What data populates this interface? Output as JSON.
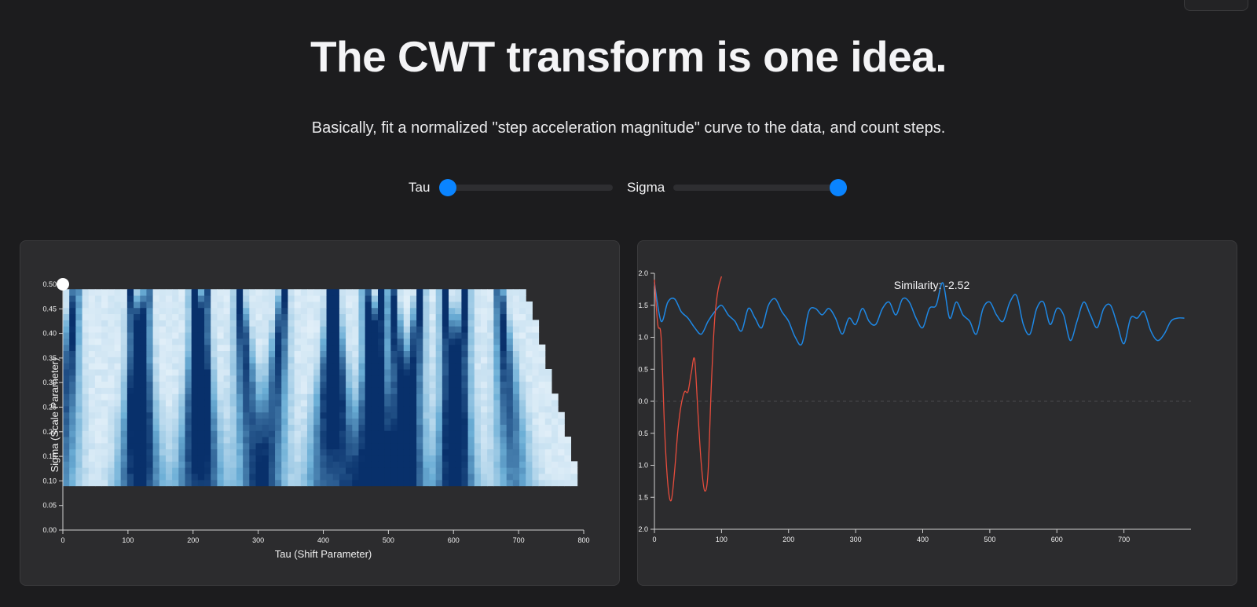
{
  "page": {
    "title": "The CWT transform is one idea.",
    "subtitle": "Basically, fit a normalized \"step acceleration magnitude\" curve to the data, and count steps."
  },
  "controls": {
    "tau": {
      "label": "Tau",
      "value_fraction": 0.0
    },
    "sigma": {
      "label": "Sigma",
      "value_fraction": 1.0
    }
  },
  "colors": {
    "background": "#1c1c1e",
    "panel": "#2c2c2e",
    "accent": "#0a84ff",
    "signal": "#1e88e5",
    "wavelet": "#e74c3c",
    "heat_low": "#f7fbff",
    "heat_high": "#08306b"
  },
  "chart_data": [
    {
      "type": "heatmap",
      "title": "",
      "xlabel": "Tau (Shift Parameter)",
      "ylabel": "Sigma (Scale Parameter)",
      "xlim": [
        0,
        800
      ],
      "ylim": [
        0,
        0.5
      ],
      "x_ticks": [
        "0",
        "100",
        "200",
        "300",
        "400",
        "500",
        "600",
        "700",
        "800"
      ],
      "y_ticks": [
        "0.00",
        "0.05",
        "0.10",
        "0.15",
        "0.20",
        "0.25",
        "0.30",
        "0.35",
        "0.40",
        "0.45",
        "0.50"
      ],
      "sigma_range": [
        0.09,
        0.49
      ],
      "tau_max": 790,
      "colormap": "Blues",
      "selected_point": {
        "tau": 0,
        "sigma": 0.5
      },
      "dark_tau_positions": [
        15,
        100,
        125,
        195,
        215,
        265,
        335,
        405,
        415,
        460,
        485,
        500,
        545,
        580,
        615,
        665
      ]
    },
    {
      "type": "line",
      "title": "",
      "annotation": "Similarity: -2.52",
      "xlim": [
        0,
        800
      ],
      "ylim": [
        -2.0,
        2.0
      ],
      "x_ticks": [
        "0",
        "100",
        "200",
        "300",
        "400",
        "500",
        "600",
        "700"
      ],
      "y_ticks": [
        "2.0",
        "1.5",
        "1.0",
        "0.5",
        "0.0",
        "−0.5",
        "−1.0",
        "−1.5",
        "−2.0"
      ],
      "series": [
        {
          "id": "signal",
          "x": [
            0,
            10,
            20,
            30,
            40,
            50,
            60,
            70,
            80,
            90,
            100,
            110,
            120,
            130,
            140,
            150,
            160,
            170,
            180,
            190,
            200,
            210,
            220,
            230,
            240,
            250,
            260,
            270,
            280,
            290,
            300,
            310,
            320,
            330,
            340,
            350,
            360,
            370,
            380,
            390,
            400,
            410,
            420,
            430,
            440,
            450,
            460,
            470,
            480,
            490,
            500,
            510,
            520,
            530,
            540,
            550,
            560,
            570,
            580,
            590,
            600,
            610,
            620,
            630,
            640,
            650,
            660,
            670,
            680,
            690,
            700,
            710,
            720,
            730,
            740,
            750,
            760,
            770,
            780,
            790
          ],
          "y": [
            1.85,
            1.25,
            1.55,
            1.6,
            1.4,
            1.3,
            1.15,
            1.05,
            1.25,
            1.4,
            1.5,
            1.35,
            1.25,
            1.1,
            1.45,
            1.3,
            1.15,
            1.5,
            1.6,
            1.4,
            1.25,
            1.0,
            0.9,
            1.4,
            1.45,
            1.35,
            1.45,
            1.3,
            1.05,
            1.3,
            1.2,
            1.45,
            1.25,
            1.2,
            1.45,
            1.55,
            1.35,
            1.6,
            1.55,
            1.3,
            1.15,
            1.45,
            1.5,
            1.85,
            1.3,
            1.55,
            1.35,
            1.25,
            1.05,
            1.45,
            1.55,
            1.35,
            1.25,
            1.55,
            1.65,
            1.2,
            1.05,
            1.45,
            1.55,
            1.2,
            1.45,
            1.35,
            0.95,
            1.25,
            1.55,
            1.35,
            1.15,
            1.45,
            1.5,
            1.2,
            0.9,
            1.3,
            1.3,
            1.4,
            1.1,
            0.95,
            1.05,
            1.25,
            1.3,
            1.3
          ]
        },
        {
          "id": "wavelet",
          "x": [
            0,
            5,
            10,
            15,
            20,
            25,
            30,
            35,
            40,
            45,
            50,
            55,
            60,
            65,
            70,
            75,
            80,
            85,
            90,
            95,
            100
          ],
          "y": [
            1.9,
            1.2,
            1.0,
            -0.4,
            -1.3,
            -1.55,
            -1.1,
            -0.45,
            -0.05,
            0.15,
            0.15,
            0.45,
            0.65,
            -0.2,
            -1.0,
            -1.4,
            -1.1,
            0.3,
            1.3,
            1.75,
            1.95
          ]
        }
      ]
    }
  ]
}
